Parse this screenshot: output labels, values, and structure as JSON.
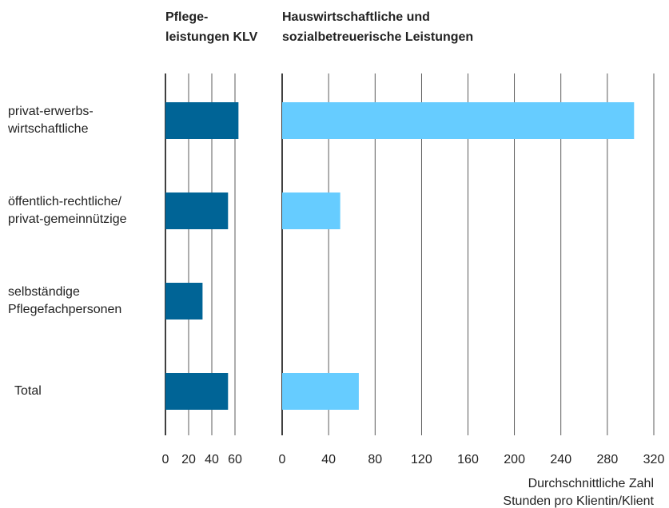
{
  "chart_data": [
    {
      "type": "bar",
      "orientation": "horizontal",
      "title": "Pflege-\nleistungen KLV",
      "categories": [
        "privat-erwerbs-\nwirtschaftliche",
        "öffentlich-rechtliche/\nprivat-gemeinnützige",
        "selbständige\nPflegefachpersonen",
        "Total"
      ],
      "values": [
        63,
        54,
        32,
        54
      ],
      "color": "#006496",
      "xlim": [
        0,
        80
      ],
      "xticks": [
        0,
        20,
        40,
        60
      ],
      "grid": true
    },
    {
      "type": "bar",
      "orientation": "horizontal",
      "title": "Hauswirtschaftliche und\nsozialbetreuerische Leistungen",
      "values": [
        303,
        50,
        0,
        66
      ],
      "color": "#66ccff",
      "xlim": [
        0,
        320
      ],
      "xticks": [
        0,
        40,
        80,
        120,
        160,
        200,
        240,
        280,
        320
      ],
      "grid": true,
      "x_label": "Durchschnittliche Zahl\nStunden pro Klientin/Klient"
    }
  ]
}
